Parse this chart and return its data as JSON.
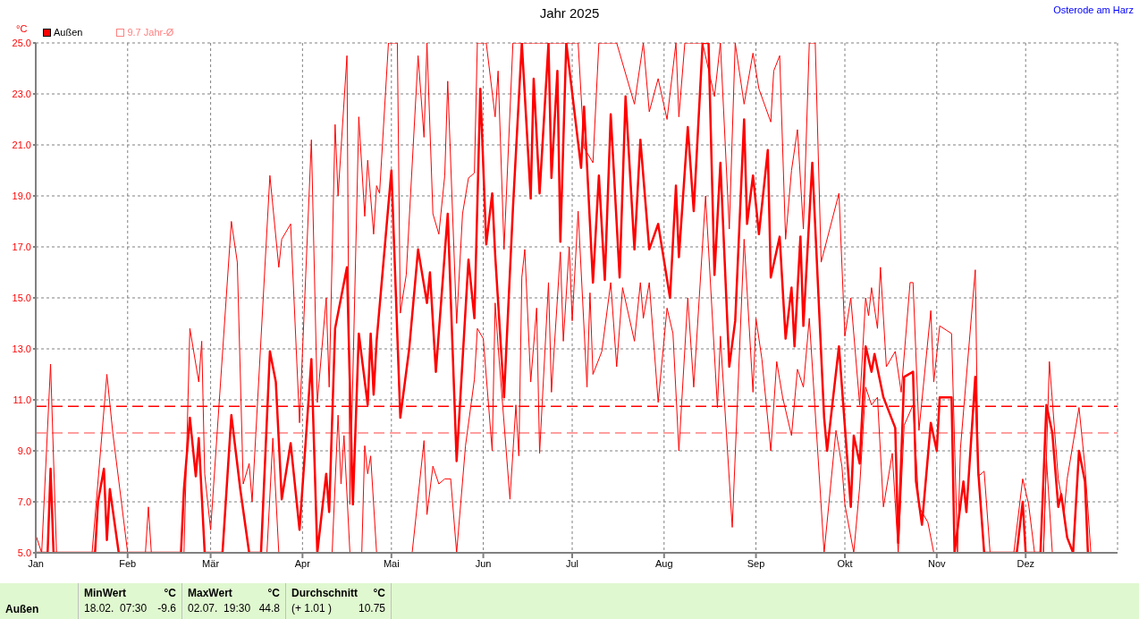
{
  "chart_data": {
    "type": "line",
    "title": "Jahr 2025",
    "ylabel": "°C",
    "xlim": [
      "2025-01-01",
      "2026-01-01"
    ],
    "xticks": [
      {
        "value": "2025-01-01",
        "label": "Jan"
      },
      {
        "value": "2025-02-01",
        "label": "Feb"
      },
      {
        "value": "2025-03-01",
        "label": "Mär"
      },
      {
        "value": "2025-04-01",
        "label": "Apr"
      },
      {
        "value": "2025-05-01",
        "label": "Mai"
      },
      {
        "value": "2025-06-01",
        "label": "Jun"
      },
      {
        "value": "2025-07-01",
        "label": "Jul"
      },
      {
        "value": "2025-08-01",
        "label": "Aug"
      },
      {
        "value": "2025-09-01",
        "label": "Sep"
      },
      {
        "value": "2025-10-01",
        "label": "Okt"
      },
      {
        "value": "2025-11-01",
        "label": "Nov"
      },
      {
        "value": "2025-12-01",
        "label": "Dez"
      }
    ],
    "ylim": [
      5,
      25
    ],
    "yticks": [
      {
        "value": 5,
        "label": "5.0"
      },
      {
        "value": 7,
        "label": "7.0"
      },
      {
        "value": 9,
        "label": "9.0"
      },
      {
        "value": 11,
        "label": "11.0"
      },
      {
        "value": 13,
        "label": "13.0"
      },
      {
        "value": 15,
        "label": "15.0"
      },
      {
        "value": 17,
        "label": "17.0"
      },
      {
        "value": 19,
        "label": "19.0"
      },
      {
        "value": 21,
        "label": "21.0"
      },
      {
        "value": 23,
        "label": "23.0"
      },
      {
        "value": 25,
        "label": "25.0"
      }
    ],
    "grid": true,
    "legend": "top left",
    "line_style": "solid",
    "series": [
      {
        "name": "Außen",
        "color": "#ff0000",
        "x": [
          "2025-01-01",
          "2025-01-05",
          "2025-01-06",
          "2025-01-07",
          "2025-01-21",
          "2025-01-22",
          "2025-01-24",
          "2025-01-25",
          "2025-01-26",
          "2025-01-29",
          "2025-02-19",
          "2025-02-20",
          "2025-02-22",
          "2025-02-24",
          "2025-02-25",
          "2025-02-27",
          "2025-03-05",
          "2025-03-08",
          "2025-03-11",
          "2025-03-14",
          "2025-03-18",
          "2025-03-21",
          "2025-03-23",
          "2025-03-25",
          "2025-03-28",
          "2025-03-31",
          "2025-04-04",
          "2025-04-06",
          "2025-04-09",
          "2025-04-10",
          "2025-04-12",
          "2025-04-16",
          "2025-04-18",
          "2025-04-20",
          "2025-04-23",
          "2025-04-24",
          "2025-04-25",
          "2025-04-26",
          "2025-05-01",
          "2025-05-04",
          "2025-05-07",
          "2025-05-10",
          "2025-05-13",
          "2025-05-14",
          "2025-05-16",
          "2025-05-20",
          "2025-05-23",
          "2025-05-27",
          "2025-05-29",
          "2025-05-31",
          "2025-06-02",
          "2025-06-04",
          "2025-06-05",
          "2025-06-08",
          "2025-06-11",
          "2025-06-14",
          "2025-06-17",
          "2025-06-18",
          "2025-06-20",
          "2025-06-23",
          "2025-06-24",
          "2025-06-26",
          "2025-06-27",
          "2025-06-29",
          "2025-07-04",
          "2025-07-05",
          "2025-07-08",
          "2025-07-10",
          "2025-07-12",
          "2025-07-14",
          "2025-07-17",
          "2025-07-19",
          "2025-07-22",
          "2025-07-24",
          "2025-07-27",
          "2025-07-30",
          "2025-08-03",
          "2025-08-05",
          "2025-08-06",
          "2025-08-09",
          "2025-08-11",
          "2025-08-14",
          "2025-08-16",
          "2025-08-18",
          "2025-08-20",
          "2025-08-23",
          "2025-08-25",
          "2025-08-28",
          "2025-08-29",
          "2025-08-31",
          "2025-09-02",
          "2025-09-05",
          "2025-09-06",
          "2025-09-09",
          "2025-09-11",
          "2025-09-13",
          "2025-09-14",
          "2025-09-16",
          "2025-09-17",
          "2025-09-20",
          "2025-09-24",
          "2025-09-25",
          "2025-09-29",
          "2025-10-03",
          "2025-10-04",
          "2025-10-06",
          "2025-10-08",
          "2025-10-10",
          "2025-10-11",
          "2025-10-14",
          "2025-10-18",
          "2025-10-19",
          "2025-10-21",
          "2025-10-24",
          "2025-10-25",
          "2025-10-27",
          "2025-10-30",
          "2025-11-01",
          "2025-11-02",
          "2025-11-06",
          "2025-11-07",
          "2025-11-10",
          "2025-11-11",
          "2025-11-14",
          "2025-11-15",
          "2025-11-17",
          "2025-11-28",
          "2025-11-30",
          "2025-12-01",
          "2025-12-06",
          "2025-12-08",
          "2025-12-10",
          "2025-12-12",
          "2025-12-13",
          "2025-12-15",
          "2025-12-17",
          "2025-12-19",
          "2025-12-21",
          "2025-12-22"
        ],
        "values": [
          5,
          5,
          8.3,
          5,
          5,
          7.0,
          8.3,
          5.5,
          7.5,
          5,
          5,
          7.5,
          10.3,
          8.0,
          9.5,
          5,
          5,
          10.4,
          7.5,
          5,
          5,
          12.9,
          11.7,
          7.1,
          9.3,
          5.9,
          12.6,
          5,
          8.1,
          6.6,
          13.8,
          16.2,
          6.9,
          13.6,
          10.8,
          13.6,
          11.2,
          13.3,
          20.0,
          10.3,
          13.0,
          16.9,
          14.8,
          16.0,
          12.1,
          18.3,
          8.6,
          16.5,
          14.2,
          23.2,
          17.1,
          19.1,
          16.7,
          11.1,
          18.5,
          25,
          18.9,
          23.6,
          19.1,
          25,
          19.7,
          23.9,
          17.2,
          25,
          20.1,
          22.5,
          15.6,
          19.8,
          15.7,
          22.2,
          15.8,
          22.9,
          16.9,
          21.2,
          16.9,
          17.9,
          15.0,
          19.4,
          16.6,
          21.7,
          18.4,
          25,
          25,
          15.9,
          20.3,
          12.3,
          14.1,
          22.0,
          17.9,
          19.8,
          17.5,
          20.8,
          15.8,
          17.4,
          13.4,
          15.4,
          13.1,
          17.4,
          13.9,
          20.3,
          10.3,
          9.0,
          13.1,
          6.8,
          9.6,
          8.5,
          13.1,
          12.1,
          12.8,
          11.1,
          9.9,
          5.4,
          11.9,
          12.1,
          7.8,
          6.1,
          10.1,
          9.0,
          11.1,
          11.1,
          5,
          7.8,
          6.6,
          11.9,
          8.2,
          5,
          5,
          7.0,
          5,
          5,
          10.8,
          9.7,
          6.8,
          7.3,
          5.6,
          5,
          9.0,
          7.8,
          5
        ]
      },
      {
        "color": "#ff0000",
        "x": [
          "2025-01-01",
          "2025-01-03",
          "2025-01-06",
          "2025-01-08",
          "2025-01-20",
          "2025-01-25",
          "2025-01-27",
          "2025-01-30",
          "2025-02-01",
          "2025-02-07",
          "2025-02-08",
          "2025-02-09",
          "2025-02-20",
          "2025-02-22",
          "2025-02-25",
          "2025-02-26",
          "2025-02-27",
          "2025-03-01",
          "2025-03-08",
          "2025-03-10",
          "2025-03-12",
          "2025-03-14",
          "2025-03-15",
          "2025-03-21",
          "2025-03-24",
          "2025-03-25",
          "2025-03-28",
          "2025-03-31",
          "2025-04-04",
          "2025-04-06",
          "2025-04-09",
          "2025-04-10",
          "2025-04-12",
          "2025-04-13",
          "2025-04-16",
          "2025-04-17",
          "2025-04-20",
          "2025-04-22",
          "2025-04-23",
          "2025-04-25",
          "2025-04-26",
          "2025-04-27",
          "2025-04-30",
          "2025-05-03",
          "2025-05-04",
          "2025-05-06",
          "2025-05-10",
          "2025-05-12",
          "2025-05-13",
          "2025-05-15",
          "2025-05-17",
          "2025-05-19",
          "2025-05-20",
          "2025-05-23",
          "2025-05-25",
          "2025-05-27",
          "2025-05-29",
          "2025-05-30",
          "2025-06-02",
          "2025-06-05",
          "2025-06-06",
          "2025-06-08",
          "2025-06-11",
          "2025-06-15",
          "2025-06-20",
          "2025-06-25",
          "2025-06-30",
          "2025-07-03",
          "2025-07-05",
          "2025-07-08",
          "2025-07-10",
          "2025-07-16",
          "2025-07-22",
          "2025-07-25",
          "2025-07-27",
          "2025-07-30",
          "2025-08-02",
          "2025-08-05",
          "2025-08-06",
          "2025-08-08",
          "2025-08-14",
          "2025-08-18",
          "2025-08-20",
          "2025-08-23",
          "2025-08-25",
          "2025-08-28",
          "2025-08-31",
          "2025-09-02",
          "2025-09-06",
          "2025-09-07",
          "2025-09-09",
          "2025-09-11",
          "2025-09-13",
          "2025-09-15",
          "2025-09-17",
          "2025-09-19",
          "2025-09-21",
          "2025-09-23",
          "2025-09-29",
          "2025-10-01",
          "2025-10-03",
          "2025-10-06",
          "2025-10-08",
          "2025-10-09",
          "2025-10-10",
          "2025-10-12",
          "2025-10-13",
          "2025-10-15",
          "2025-10-18",
          "2025-10-20",
          "2025-10-23",
          "2025-10-24",
          "2025-10-26",
          "2025-10-30",
          "2025-10-31",
          "2025-11-02",
          "2025-11-06",
          "2025-11-08",
          "2025-11-09",
          "2025-11-14",
          "2025-11-15",
          "2025-11-17",
          "2025-11-19",
          "2025-11-27",
          "2025-11-30",
          "2025-12-02",
          "2025-12-04",
          "2025-12-07",
          "2025-12-09",
          "2025-12-12",
          "2025-12-14",
          "2025-12-15",
          "2025-12-19",
          "2025-12-21",
          "2025-12-23"
        ],
        "values": [
          5.7,
          5,
          12.4,
          5,
          5,
          12.0,
          9.7,
          6.9,
          5,
          5,
          6.8,
          5,
          5,
          13.8,
          11.7,
          13.3,
          8.1,
          5.9,
          18.0,
          16.4,
          7.7,
          8.5,
          7.0,
          19.8,
          16.2,
          17.3,
          17.9,
          10.1,
          21.2,
          10.9,
          15.0,
          11.5,
          21.8,
          19.0,
          24.5,
          6.9,
          22.1,
          18.2,
          20.4,
          17.5,
          19.4,
          19.1,
          25,
          25,
          14.4,
          15.9,
          24.5,
          21.3,
          25,
          18.3,
          17.5,
          19.8,
          23.5,
          14.0,
          18.3,
          19.7,
          19.9,
          25,
          25,
          22.1,
          23.9,
          16.9,
          25,
          25,
          25,
          25,
          25,
          25,
          20.9,
          20.3,
          25,
          25,
          22.6,
          25,
          22.3,
          23.6,
          22.0,
          25,
          22.1,
          25,
          25,
          22.9,
          25,
          17.7,
          25,
          22.6,
          24.6,
          23.2,
          21.9,
          23.9,
          24.5,
          17.3,
          20.0,
          21.6,
          17.7,
          25,
          25,
          16.4,
          19.1,
          13.5,
          15.0,
          10.8,
          15.0,
          14.3,
          15.4,
          13.8,
          16.2,
          12.3,
          12.9,
          11.3,
          15.6,
          15.6,
          9.8,
          14.5,
          11.7,
          13.9,
          13.6,
          5,
          9.1,
          16.1,
          8.0,
          8.2,
          5,
          5,
          7.9,
          6.9,
          5,
          5,
          12.5,
          7.9,
          6.6,
          7.9,
          10.7,
          8.4,
          5
        ]
      },
      {
        "color": "#ff0000",
        "x": [
          "2025-01-01",
          "2025-03-20",
          "2025-03-22",
          "2025-03-24",
          "2025-04-11",
          "2025-04-13",
          "2025-04-14",
          "2025-04-15",
          "2025-04-17",
          "2025-04-21",
          "2025-04-22",
          "2025-04-23",
          "2025-04-24",
          "2025-04-26",
          "2025-05-08",
          "2025-05-12",
          "2025-05-13",
          "2025-05-15",
          "2025-05-17",
          "2025-05-19",
          "2025-05-21",
          "2025-05-23",
          "2025-05-26",
          "2025-05-29",
          "2025-05-30",
          "2025-06-01",
          "2025-06-04",
          "2025-06-05",
          "2025-06-06",
          "2025-06-10",
          "2025-06-12",
          "2025-06-13",
          "2025-06-14",
          "2025-06-15",
          "2025-06-17",
          "2025-06-19",
          "2025-06-20",
          "2025-06-23",
          "2025-06-24",
          "2025-06-27",
          "2025-06-28",
          "2025-06-30",
          "2025-07-01",
          "2025-07-03",
          "2025-07-06",
          "2025-07-07",
          "2025-07-08",
          "2025-07-11",
          "2025-07-14",
          "2025-07-16",
          "2025-07-18",
          "2025-07-22",
          "2025-07-24",
          "2025-07-25",
          "2025-07-27",
          "2025-07-30",
          "2025-08-02",
          "2025-08-04",
          "2025-08-06",
          "2025-08-09",
          "2025-08-11",
          "2025-08-15",
          "2025-08-19",
          "2025-08-20",
          "2025-08-24",
          "2025-08-28",
          "2025-08-31",
          "2025-09-01",
          "2025-09-03",
          "2025-09-06",
          "2025-09-08",
          "2025-09-10",
          "2025-09-13",
          "2025-09-15",
          "2025-09-17",
          "2025-09-19",
          "2025-09-24",
          "2025-09-28",
          "2025-09-30",
          "2025-10-01",
          "2025-10-04",
          "2025-10-06",
          "2025-10-08",
          "2025-10-10",
          "2025-10-12",
          "2025-10-14",
          "2025-10-17",
          "2025-10-19",
          "2025-10-21",
          "2025-10-24",
          "2025-10-26",
          "2025-10-29",
          "2025-10-31",
          "2025-12-07",
          "2025-12-08",
          "2025-12-10",
          "2025-12-23"
        ],
        "values": [
          5,
          5,
          9.5,
          5,
          5,
          10.4,
          7.7,
          9.6,
          5,
          5,
          9.2,
          8.1,
          8.8,
          5,
          5,
          9.4,
          6.5,
          8.4,
          7.7,
          7.9,
          7.9,
          5,
          9.2,
          11.8,
          13.8,
          13.4,
          9.0,
          14.8,
          13.1,
          7.1,
          10.8,
          8.8,
          15.8,
          16.9,
          11.7,
          14.6,
          8.9,
          15.6,
          11.3,
          16.8,
          13.3,
          17.0,
          14.1,
          18.4,
          11.5,
          15.2,
          12.0,
          12.9,
          15.6,
          12.3,
          15.4,
          13.3,
          15.6,
          14.2,
          15.6,
          10.9,
          14.6,
          13.6,
          9.0,
          15.0,
          11.5,
          19.0,
          10.7,
          13.5,
          6.0,
          17.3,
          11.3,
          14.2,
          12.6,
          9.0,
          12.5,
          11.1,
          9.6,
          12.2,
          11.5,
          14.2,
          5,
          9.8,
          8.4,
          6.9,
          5,
          7.6,
          11.5,
          10.8,
          11.1,
          6.8,
          8.9,
          5,
          10.0,
          10.8,
          6.8,
          6.2,
          5,
          5,
          8.7,
          5,
          5
        ]
      }
    ],
    "ref_lines": [
      {
        "axis": "y",
        "value": 10.75,
        "color": "#ff0000",
        "line_style": "dashed"
      },
      {
        "axis": "y",
        "value": 9.7,
        "label": "9.7 Jahr-Ø",
        "color": "#ff8080",
        "line_style": "dashed"
      }
    ],
    "annotations": [
      "Osterode am Harz",
      "Außen",
      "MinWert",
      "°C",
      "18.02.  07:30",
      "-9.6",
      "MaxWert",
      "°C",
      "02.07.  19:30",
      "44.8",
      "Durchschnitt",
      "°C",
      "(+ 1.01 )",
      "10.75"
    ]
  }
}
